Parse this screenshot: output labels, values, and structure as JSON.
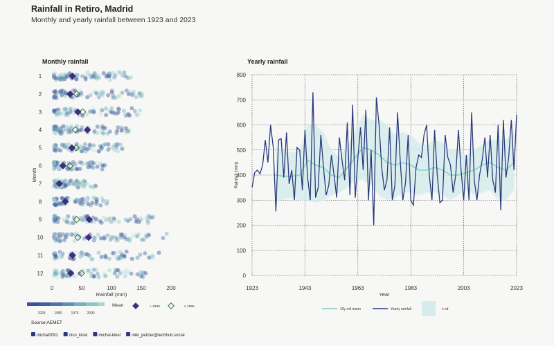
{
  "header": {
    "title": "Rainfall in Retiro, Madrid",
    "subtitle": "Monthly and yearly rainfall between 1923 and 2023"
  },
  "footer": {
    "source": "Source:AEMET",
    "socials": [
      {
        "icon": "mastodon-icon",
        "text": "michal0091"
      },
      {
        "icon": "twitter-icon",
        "text": "nico_kinel"
      },
      {
        "icon": "linkedin-icon",
        "text": "michal-kinel"
      },
      {
        "icon": "mastodon-icon",
        "text": "miki_peltzer@techhub.social"
      }
    ]
  },
  "colors": {
    "background": "#f7f7f5",
    "dark_navy": "#2a3a7a",
    "rolling_mean": "#8fd3cc",
    "sd_band": "#d6ecec",
    "mean_1990": "#3d2f7e",
    "mean_1955": "#7fc79a",
    "gradient": [
      "#3d4f99",
      "#4b6aa7",
      "#5f8db3",
      "#78aebd",
      "#9ccfcc",
      "#c3e6e2"
    ]
  },
  "chart_data": [
    {
      "type": "scatter",
      "title": "Monthly rainfall",
      "xlabel": "Rainfall (mm)",
      "ylabel": "Month",
      "xlim": [
        -10,
        200
      ],
      "xticks": [
        0,
        50,
        100,
        150,
        200
      ],
      "months": [
        "1",
        "2",
        "3",
        "4",
        "5",
        "6",
        "7",
        "8",
        "9",
        "10",
        "11",
        "12"
      ],
      "month_ranges": [
        [
          0,
          130
        ],
        [
          0,
          150
        ],
        [
          0,
          145
        ],
        [
          0,
          140
        ],
        [
          0,
          120
        ],
        [
          0,
          90
        ],
        [
          0,
          70
        ],
        [
          0,
          90
        ],
        [
          0,
          175
        ],
        [
          0,
          190
        ],
        [
          0,
          180
        ],
        [
          0,
          155
        ]
      ],
      "mean_since_1990": [
        31,
        27,
        40,
        56,
        30,
        15,
        9,
        19,
        59,
        58,
        31,
        28
      ],
      "mean_until_1955": [
        null,
        38,
        48,
        36,
        37,
        27,
        null,
        null,
        38,
        40,
        null,
        46
      ],
      "legend": {
        "colorbar_ticks": [
          "1925",
          "1950",
          "1975",
          "2000"
        ],
        "mean_label": "Mean",
        "mean_1990_label": "> 1990",
        "mean_1955_label": "≤ 1955"
      }
    },
    {
      "type": "line",
      "title": "Yearly rainfall",
      "xlabel": "Year",
      "ylabel": "Rainfall (mm)",
      "xlim": [
        1923,
        2023
      ],
      "ylim": [
        0,
        800
      ],
      "xticks": [
        1923,
        1943,
        1963,
        1983,
        2003,
        2023
      ],
      "yticks": [
        0,
        100,
        200,
        300,
        400,
        500,
        600,
        700,
        800
      ],
      "grid": true,
      "legend_position": "bottom",
      "series": [
        {
          "name": "Yearly rainfall",
          "x": [
            1923,
            1924,
            1925,
            1926,
            1927,
            1928,
            1929,
            1930,
            1931,
            1932,
            1933,
            1934,
            1935,
            1936,
            1937,
            1938,
            1939,
            1940,
            1941,
            1942,
            1943,
            1944,
            1945,
            1946,
            1947,
            1948,
            1949,
            1950,
            1951,
            1952,
            1953,
            1954,
            1955,
            1956,
            1957,
            1958,
            1959,
            1960,
            1961,
            1962,
            1963,
            1964,
            1965,
            1966,
            1967,
            1968,
            1969,
            1970,
            1971,
            1972,
            1973,
            1974,
            1975,
            1976,
            1977,
            1978,
            1979,
            1980,
            1981,
            1982,
            1983,
            1984,
            1985,
            1986,
            1987,
            1988,
            1989,
            1990,
            1991,
            1992,
            1993,
            1994,
            1995,
            1996,
            1997,
            1998,
            1999,
            2000,
            2001,
            2002,
            2003,
            2004,
            2005,
            2006,
            2007,
            2008,
            2009,
            2010,
            2011,
            2012,
            2013,
            2014,
            2015,
            2016,
            2017,
            2018,
            2019,
            2020,
            2021,
            2022,
            2023
          ],
          "values": [
            350,
            410,
            420,
            405,
            440,
            540,
            450,
            600,
            510,
            255,
            540,
            545,
            390,
            570,
            365,
            420,
            300,
            510,
            500,
            340,
            580,
            390,
            300,
            730,
            310,
            350,
            560,
            430,
            320,
            360,
            480,
            400,
            310,
            550,
            460,
            380,
            610,
            320,
            680,
            310,
            470,
            590,
            420,
            660,
            300,
            500,
            200,
            710,
            600,
            430,
            340,
            380,
            590,
            300,
            360,
            650,
            460,
            300,
            370,
            560,
            300,
            280,
            430,
            480,
            470,
            560,
            600,
            400,
            300,
            580,
            400,
            290,
            300,
            560,
            470,
            440,
            330,
            400,
            580,
            420,
            300,
            480,
            300,
            650,
            380,
            300,
            400,
            460,
            550,
            390,
            560,
            380,
            330,
            600,
            260,
            620,
            390,
            470,
            620,
            420,
            640
          ]
        },
        {
          "name": "10y roll mean",
          "x": [
            1932,
            1935,
            1938,
            1941,
            1944,
            1947,
            1950,
            1953,
            1956,
            1959,
            1962,
            1965,
            1968,
            1971,
            1974,
            1977,
            1980,
            1983,
            1986,
            1989,
            1992,
            1995,
            1998,
            2001,
            2004,
            2007,
            2010,
            2013,
            2016,
            2019,
            2022
          ],
          "values": [
            400,
            395,
            395,
            400,
            460,
            440,
            430,
            400,
            390,
            430,
            470,
            510,
            500,
            480,
            450,
            440,
            450,
            440,
            420,
            420,
            430,
            420,
            400,
            400,
            410,
            420,
            440,
            450,
            430,
            420,
            450
          ]
        }
      ],
      "band": {
        "name": "± sd",
        "x": [
          1932,
          1935,
          1938,
          1941,
          1944,
          1947,
          1950,
          1953,
          1956,
          1959,
          1962,
          1965,
          1968,
          1971,
          1974,
          1977,
          1980,
          1983,
          1986,
          1989,
          1992,
          1995,
          1998,
          2001,
          2004,
          2007,
          2010,
          2013,
          2016,
          2019,
          2022
        ],
        "lower": [
          290,
          305,
          310,
          300,
          300,
          290,
          300,
          320,
          330,
          350,
          380,
          380,
          360,
          320,
          300,
          310,
          330,
          330,
          320,
          330,
          330,
          320,
          300,
          320,
          340,
          320,
          330,
          340,
          300,
          300,
          340
        ],
        "upper": [
          510,
          500,
          490,
          500,
          600,
          600,
          570,
          500,
          470,
          520,
          580,
          640,
          620,
          620,
          600,
          560,
          570,
          560,
          530,
          520,
          540,
          530,
          500,
          500,
          480,
          500,
          520,
          540,
          540,
          540,
          580
        ]
      }
    }
  ]
}
